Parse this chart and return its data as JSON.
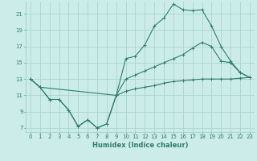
{
  "xlabel": "Humidex (Indice chaleur)",
  "background_color": "#ccecea",
  "grid_color": "#aad4d2",
  "line_color": "#2e7d6e",
  "xlim": [
    -0.5,
    23.5
  ],
  "ylim": [
    6.5,
    22.5
  ],
  "xticks": [
    0,
    1,
    2,
    3,
    4,
    5,
    6,
    7,
    8,
    9,
    10,
    11,
    12,
    13,
    14,
    15,
    16,
    17,
    18,
    19,
    20,
    21,
    22,
    23
  ],
  "yticks": [
    7,
    9,
    11,
    13,
    15,
    17,
    19,
    21
  ],
  "line1_x": [
    0,
    1,
    2,
    3,
    4,
    5,
    6,
    7,
    8,
    9,
    10,
    11,
    12,
    13,
    14,
    15,
    16,
    17,
    18,
    19,
    20,
    21,
    22,
    23
  ],
  "line1_y": [
    13,
    12,
    10.5,
    10.5,
    9.2,
    7.2,
    8.0,
    7.0,
    7.5,
    11.0,
    11.5,
    11.8,
    12.0,
    12.2,
    12.5,
    12.7,
    12.8,
    12.9,
    13.0,
    13.0,
    13.0,
    13.0,
    13.1,
    13.2
  ],
  "line2_x": [
    0,
    1,
    2,
    3,
    4,
    5,
    6,
    7,
    8,
    9,
    10,
    11,
    12,
    13,
    14,
    15,
    16,
    17,
    18,
    19,
    20,
    21,
    22,
    23
  ],
  "line2_y": [
    13,
    12,
    10.5,
    10.5,
    9.2,
    7.2,
    8.0,
    7.0,
    7.5,
    11.0,
    15.5,
    15.8,
    17.2,
    19.5,
    20.5,
    22.2,
    21.5,
    21.4,
    21.5,
    19.5,
    17.0,
    15.2,
    13.8,
    13.2
  ],
  "line3_x": [
    0,
    1,
    9,
    10,
    11,
    12,
    13,
    14,
    15,
    16,
    17,
    18,
    19,
    20,
    21,
    22,
    23
  ],
  "line3_y": [
    13,
    12,
    11.0,
    13.0,
    13.5,
    14.0,
    14.5,
    15.0,
    15.5,
    16.0,
    16.8,
    17.5,
    17.0,
    15.2,
    15.0,
    13.8,
    13.2
  ]
}
